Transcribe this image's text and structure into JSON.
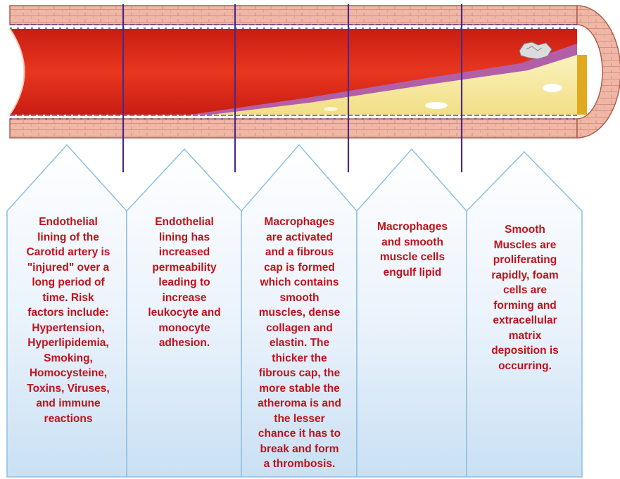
{
  "colors": {
    "text": "#c0121a",
    "divider": "#4b2a86",
    "callout_border": "#8cc0e2",
    "callout_top": "#ffffff",
    "callout_bottom": "#c9e0f4",
    "blood": "#e0311d",
    "wall": "#f1b7a6",
    "plaque": "#f5e99c",
    "lipid_core": "#e0a91f",
    "intima": "#b25fa8"
  },
  "stages": [
    {
      "text": "Endothelial\nlining of the\nCarotid artery is\n\"injured\" over a\nlong period of\ntime. Risk\nfactors include:\nHypertension,\nHyperlipidemia,\nSmoking,\nHomocysteine,\nToxins, Viruses,\nand immune\nreactions"
    },
    {
      "text": "Endothelial\nlining has\nincreased\npermeability\nleading to\nincrease\nleukocyte and\nmonocyte\nadhesion."
    },
    {
      "text": "Macrophages\nare activated\nand a fibrous\ncap is formed\nwhich contains\nsmooth\nmuscles, dense\ncollagen and\nelastin. The\nthicker the\nfibrous cap, the\nmore stable the\natheroma is and\nthe lesser\nchance it has to\nbreak and form\na thrombosis."
    },
    {
      "text": "Macrophages\nand smooth\nmuscle cells\nengulf lipid"
    },
    {
      "text": "Smooth\nMuscles are\nproliferating\nrapidly, foam\ncells are\nforming and\nextracellular\nmatrix\ndeposition is\noccurring."
    }
  ]
}
